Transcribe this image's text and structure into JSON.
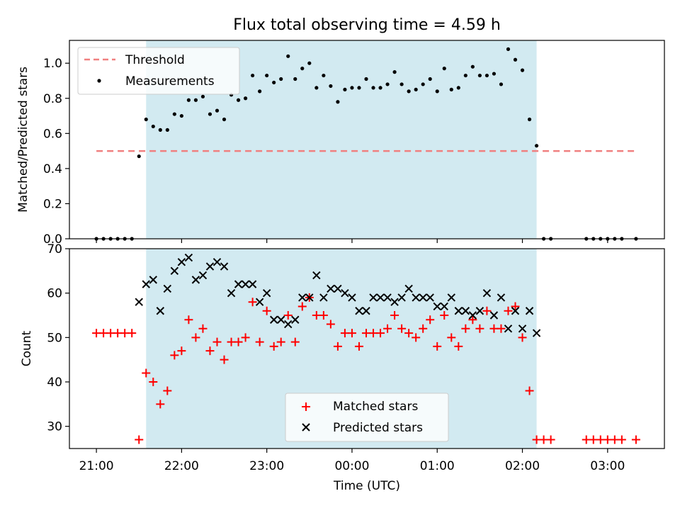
{
  "chart_data": {
    "type": "scatter",
    "title": "Flux total observing time = 4.59 h",
    "xlabel": "Time (UTC)",
    "x_unit": "hours UTC (after 24:00 means next day)",
    "xlim": [
      "20:41",
      "03:40"
    ],
    "xticks": [
      "21:00",
      "22:00",
      "23:00",
      "00:00",
      "01:00",
      "02:00",
      "03:00"
    ],
    "observing_window": {
      "start": "21:35",
      "end": "02:10",
      "color": "#add8e6"
    },
    "panels": [
      {
        "ylabel": "Matched/Predicted stars",
        "ylim": [
          0,
          1.13
        ],
        "yticks": [
          "0.0",
          "0.2",
          "0.4",
          "0.6",
          "0.8",
          "1.0"
        ],
        "legend_position": "upper left",
        "series": [
          {
            "name": "Threshold",
            "kind": "line",
            "style": "dashed",
            "color": "#f08080",
            "points": [
              [
                "21:00",
                0.5
              ],
              [
                "03:20",
                0.5
              ]
            ]
          },
          {
            "name": "Measurements",
            "kind": "scatter",
            "marker": "dot",
            "color": "#000000",
            "points": [
              [
                "21:00",
                0
              ],
              [
                "21:05",
                0
              ],
              [
                "21:10",
                0
              ],
              [
                "21:15",
                0
              ],
              [
                "21:20",
                0
              ],
              [
                "21:25",
                0
              ],
              [
                "21:30",
                0.47
              ],
              [
                "21:35",
                0.68
              ],
              [
                "21:40",
                0.64
              ],
              [
                "21:45",
                0.62
              ],
              [
                "21:50",
                0.62
              ],
              [
                "21:55",
                0.71
              ],
              [
                "22:00",
                0.7
              ],
              [
                "22:05",
                0.79
              ],
              [
                "22:10",
                0.79
              ],
              [
                "22:15",
                0.81
              ],
              [
                "22:20",
                0.71
              ],
              [
                "22:25",
                0.73
              ],
              [
                "22:30",
                0.68
              ],
              [
                "22:35",
                0.82
              ],
              [
                "22:40",
                0.79
              ],
              [
                "22:45",
                0.8
              ],
              [
                "22:50",
                0.93
              ],
              [
                "22:55",
                0.84
              ],
              [
                "23:00",
                0.93
              ],
              [
                "23:05",
                0.89
              ],
              [
                "23:10",
                0.91
              ],
              [
                "23:15",
                1.04
              ],
              [
                "23:20",
                0.91
              ],
              [
                "23:25",
                0.97
              ],
              [
                "23:30",
                1.0
              ],
              [
                "23:35",
                0.86
              ],
              [
                "23:40",
                0.93
              ],
              [
                "23:45",
                0.87
              ],
              [
                "23:50",
                0.78
              ],
              [
                "23:55",
                0.85
              ],
              [
                "00:00",
                0.86
              ],
              [
                "00:05",
                0.86
              ],
              [
                "00:10",
                0.91
              ],
              [
                "00:15",
                0.86
              ],
              [
                "00:20",
                0.86
              ],
              [
                "00:25",
                0.88
              ],
              [
                "00:30",
                0.95
              ],
              [
                "00:35",
                0.88
              ],
              [
                "00:40",
                0.84
              ],
              [
                "00:45",
                0.85
              ],
              [
                "00:50",
                0.88
              ],
              [
                "00:55",
                0.91
              ],
              [
                "01:00",
                0.84
              ],
              [
                "01:05",
                0.97
              ],
              [
                "01:10",
                0.85
              ],
              [
                "01:15",
                0.86
              ],
              [
                "01:20",
                0.93
              ],
              [
                "01:25",
                0.98
              ],
              [
                "01:30",
                0.93
              ],
              [
                "01:35",
                0.93
              ],
              [
                "01:40",
                0.94
              ],
              [
                "01:45",
                0.88
              ],
              [
                "01:50",
                1.08
              ],
              [
                "01:55",
                1.02
              ],
              [
                "02:00",
                0.96
              ],
              [
                "02:05",
                0.68
              ],
              [
                "02:10",
                0.53
              ],
              [
                "02:15",
                0
              ],
              [
                "02:20",
                0
              ],
              [
                "02:45",
                0
              ],
              [
                "02:50",
                0
              ],
              [
                "02:55",
                0
              ],
              [
                "03:00",
                0
              ],
              [
                "03:05",
                0
              ],
              [
                "03:10",
                0
              ],
              [
                "03:20",
                0
              ]
            ]
          }
        ]
      },
      {
        "ylabel": "Count",
        "ylim": [
          25,
          70
        ],
        "yticks": [
          "30",
          "40",
          "50",
          "60",
          "70"
        ],
        "legend_position": "lower center",
        "series": [
          {
            "name": "Matched stars",
            "kind": "scatter",
            "marker": "plus",
            "color": "#ff0000",
            "points": [
              [
                "21:00",
                51
              ],
              [
                "21:05",
                51
              ],
              [
                "21:10",
                51
              ],
              [
                "21:15",
                51
              ],
              [
                "21:20",
                51
              ],
              [
                "21:25",
                51
              ],
              [
                "21:30",
                27
              ],
              [
                "21:35",
                42
              ],
              [
                "21:40",
                40
              ],
              [
                "21:45",
                35
              ],
              [
                "21:50",
                38
              ],
              [
                "21:55",
                46
              ],
              [
                "22:00",
                47
              ],
              [
                "22:05",
                54
              ],
              [
                "22:10",
                50
              ],
              [
                "22:15",
                52
              ],
              [
                "22:20",
                47
              ],
              [
                "22:25",
                49
              ],
              [
                "22:30",
                45
              ],
              [
                "22:35",
                49
              ],
              [
                "22:40",
                49
              ],
              [
                "22:45",
                50
              ],
              [
                "22:50",
                58
              ],
              [
                "22:55",
                49
              ],
              [
                "23:00",
                56
              ],
              [
                "23:05",
                48
              ],
              [
                "23:10",
                49
              ],
              [
                "23:15",
                55
              ],
              [
                "23:20",
                49
              ],
              [
                "23:25",
                57
              ],
              [
                "23:30",
                59
              ],
              [
                "23:35",
                55
              ],
              [
                "23:40",
                55
              ],
              [
                "23:45",
                53
              ],
              [
                "23:50",
                48
              ],
              [
                "23:55",
                51
              ],
              [
                "00:00",
                51
              ],
              [
                "00:05",
                48
              ],
              [
                "00:10",
                51
              ],
              [
                "00:15",
                51
              ],
              [
                "00:20",
                51
              ],
              [
                "00:25",
                52
              ],
              [
                "00:30",
                55
              ],
              [
                "00:35",
                52
              ],
              [
                "00:40",
                51
              ],
              [
                "00:45",
                50
              ],
              [
                "00:50",
                52
              ],
              [
                "00:55",
                54
              ],
              [
                "01:00",
                48
              ],
              [
                "01:05",
                55
              ],
              [
                "01:10",
                50
              ],
              [
                "01:15",
                48
              ],
              [
                "01:20",
                52
              ],
              [
                "01:25",
                54
              ],
              [
                "01:30",
                52
              ],
              [
                "01:35",
                56
              ],
              [
                "01:40",
                52
              ],
              [
                "01:45",
                52
              ],
              [
                "01:50",
                56
              ],
              [
                "01:55",
                57
              ],
              [
                "02:00",
                50
              ],
              [
                "02:05",
                38
              ],
              [
                "02:10",
                27
              ],
              [
                "02:15",
                27
              ],
              [
                "02:20",
                27
              ],
              [
                "02:45",
                27
              ],
              [
                "02:50",
                27
              ],
              [
                "02:55",
                27
              ],
              [
                "03:00",
                27
              ],
              [
                "03:05",
                27
              ],
              [
                "03:10",
                27
              ],
              [
                "03:20",
                27
              ]
            ]
          },
          {
            "name": "Predicted stars",
            "kind": "scatter",
            "marker": "x",
            "color": "#000000",
            "points": [
              [
                "21:30",
                58
              ],
              [
                "21:35",
                62
              ],
              [
                "21:40",
                63
              ],
              [
                "21:45",
                56
              ],
              [
                "21:50",
                61
              ],
              [
                "21:55",
                65
              ],
              [
                "22:00",
                67
              ],
              [
                "22:05",
                68
              ],
              [
                "22:10",
                63
              ],
              [
                "22:15",
                64
              ],
              [
                "22:20",
                66
              ],
              [
                "22:25",
                67
              ],
              [
                "22:30",
                66
              ],
              [
                "22:35",
                60
              ],
              [
                "22:40",
                62
              ],
              [
                "22:45",
                62
              ],
              [
                "22:50",
                62
              ],
              [
                "22:55",
                58
              ],
              [
                "23:00",
                60
              ],
              [
                "23:05",
                54
              ],
              [
                "23:10",
                54
              ],
              [
                "23:15",
                53
              ],
              [
                "23:20",
                54
              ],
              [
                "23:25",
                59
              ],
              [
                "23:30",
                59
              ],
              [
                "23:35",
                64
              ],
              [
                "23:40",
                59
              ],
              [
                "23:45",
                61
              ],
              [
                "23:50",
                61
              ],
              [
                "23:55",
                60
              ],
              [
                "00:00",
                59
              ],
              [
                "00:05",
                56
              ],
              [
                "00:10",
                56
              ],
              [
                "00:15",
                59
              ],
              [
                "00:20",
                59
              ],
              [
                "00:25",
                59
              ],
              [
                "00:30",
                58
              ],
              [
                "00:35",
                59
              ],
              [
                "00:40",
                61
              ],
              [
                "00:45",
                59
              ],
              [
                "00:50",
                59
              ],
              [
                "00:55",
                59
              ],
              [
                "01:00",
                57
              ],
              [
                "01:05",
                57
              ],
              [
                "01:10",
                59
              ],
              [
                "01:15",
                56
              ],
              [
                "01:20",
                56
              ],
              [
                "01:25",
                55
              ],
              [
                "01:30",
                56
              ],
              [
                "01:35",
                60
              ],
              [
                "01:40",
                55
              ],
              [
                "01:45",
                59
              ],
              [
                "01:50",
                52
              ],
              [
                "01:55",
                56
              ],
              [
                "02:00",
                52
              ],
              [
                "02:05",
                56
              ],
              [
                "02:10",
                51
              ]
            ]
          }
        ]
      }
    ]
  }
}
